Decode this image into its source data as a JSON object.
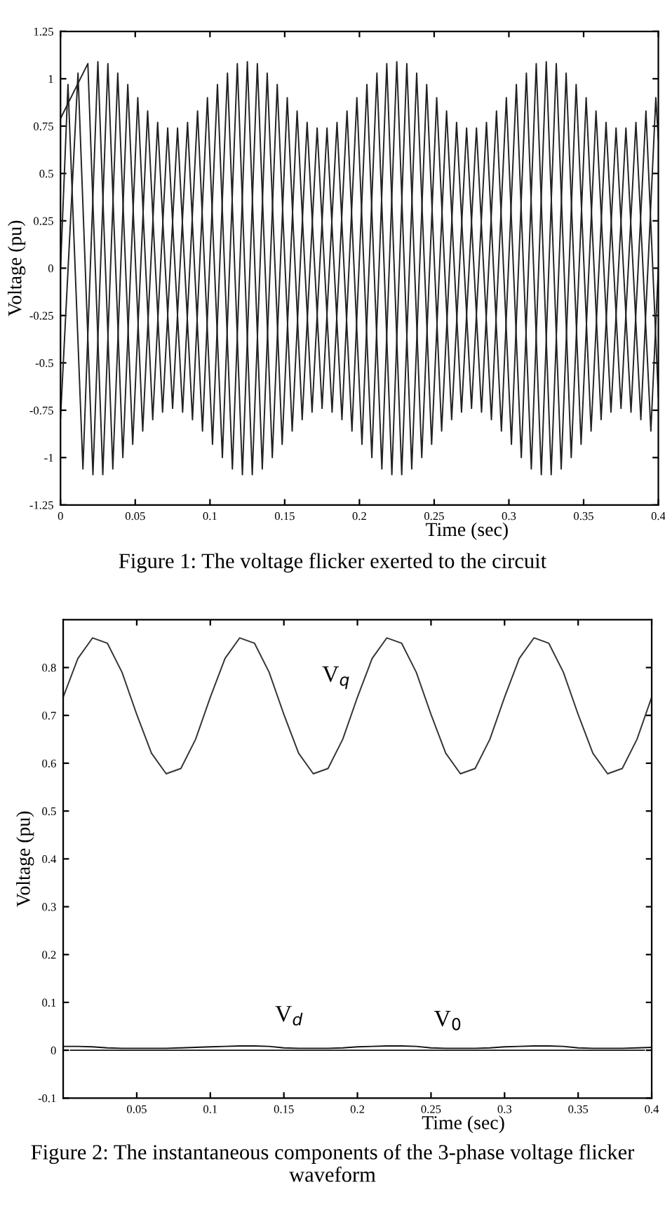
{
  "chart_data": [
    {
      "type": "line",
      "xlabel": "Time (sec)",
      "ylabel": "Voltage (pu)",
      "xlim": [
        0,
        0.4
      ],
      "ylim": [
        -1.25,
        1.25
      ],
      "xticks": [
        0,
        0.05,
        0.1,
        0.15,
        0.2,
        0.25,
        0.3,
        0.35,
        0.4
      ],
      "yticks": [
        -1.25,
        -1,
        -0.75,
        -0.5,
        -0.25,
        0,
        0.25,
        0.5,
        0.75,
        1,
        1.25
      ],
      "grid": false,
      "legend": false,
      "line_style": "solid",
      "marker": "none",
      "annotations": [
        "Figure 1: The voltage flicker exerted to the circuit"
      ],
      "series": [
        {
          "color": "#222222",
          "x": [
            0,
            0.005,
            0.015,
            0.025,
            0.035,
            0.045,
            0.055,
            0.065,
            0.075,
            0.085,
            0.095,
            0.105,
            0.115,
            0.125,
            0.135,
            0.145,
            0.155,
            0.165,
            0.175,
            0.185,
            0.195,
            0.205,
            0.215,
            0.225,
            0.235,
            0.245,
            0.255,
            0.265,
            0.275,
            0.285,
            0.295,
            0.305,
            0.315,
            0.325,
            0.335,
            0.345,
            0.355,
            0.365,
            0.375,
            0.385,
            0.395,
            0.4
          ],
          "values": [
            0,
            0.97,
            -1.06,
            1.09,
            -1.06,
            0.97,
            -0.86,
            0.77,
            -0.74,
            0.77,
            -0.86,
            0.97,
            -1.06,
            1.09,
            -1.06,
            0.97,
            -0.86,
            0.77,
            -0.74,
            0.77,
            -0.86,
            0.97,
            -1.06,
            1.09,
            -1.06,
            0.97,
            -0.86,
            0.77,
            -0.74,
            0.77,
            -0.86,
            0.97,
            -1.06,
            1.09,
            -1.06,
            0.97,
            -0.86,
            0.77,
            -0.74,
            0.77,
            -0.86,
            0
          ]
        },
        {
          "color": "#222222",
          "x": [
            0,
            0.0117,
            0.0217,
            0.0317,
            0.0417,
            0.0517,
            0.0617,
            0.0717,
            0.0817,
            0.0917,
            0.1017,
            0.1117,
            0.1217,
            0.1317,
            0.1417,
            0.1517,
            0.1617,
            0.1717,
            0.1817,
            0.1917,
            0.2017,
            0.2117,
            0.2217,
            0.2317,
            0.2417,
            0.2517,
            0.2617,
            0.2717,
            0.2817,
            0.2917,
            0.3017,
            0.3117,
            0.3217,
            0.3317,
            0.3417,
            0.3517,
            0.3617,
            0.3717,
            0.3817,
            0.3917,
            0.4
          ],
          "values": [
            -0.79,
            1.03,
            -1.09,
            1.08,
            -1.0,
            0.9,
            -0.8,
            0.74,
            -0.76,
            0.83,
            -0.93,
            1.03,
            -1.09,
            1.08,
            -1.0,
            0.9,
            -0.8,
            0.74,
            -0.76,
            0.83,
            -0.93,
            1.03,
            -1.09,
            1.08,
            -1.0,
            0.9,
            -0.8,
            0.74,
            -0.76,
            0.83,
            -0.93,
            1.03,
            -1.09,
            1.08,
            -1.0,
            0.9,
            -0.8,
            0.74,
            -0.76,
            0.83,
            -0.68
          ]
        },
        {
          "color": "#222222",
          "x": [
            0,
            0.0183,
            0.0283,
            0.0383,
            0.0483,
            0.0583,
            0.0683,
            0.0783,
            0.0883,
            0.0983,
            0.1083,
            0.1183,
            0.1283,
            0.1383,
            0.1483,
            0.1583,
            0.1683,
            0.1783,
            0.1883,
            0.1983,
            0.2083,
            0.2183,
            0.2283,
            0.2383,
            0.2483,
            0.2583,
            0.2683,
            0.2783,
            0.2883,
            0.2983,
            0.3083,
            0.3183,
            0.3283,
            0.3383,
            0.3483,
            0.3583,
            0.3683,
            0.3783,
            0.3883,
            0.3983,
            0.4
          ],
          "values": [
            0.79,
            1.08,
            -1.09,
            1.03,
            -0.93,
            0.83,
            -0.76,
            0.74,
            -0.8,
            0.9,
            -1.0,
            1.08,
            -1.09,
            1.03,
            -0.93,
            0.83,
            -0.76,
            0.74,
            -0.8,
            0.9,
            -1.0,
            1.08,
            -1.09,
            1.03,
            -0.93,
            0.83,
            -0.76,
            0.74,
            -0.8,
            0.9,
            -1.0,
            1.08,
            -1.09,
            1.03,
            -0.93,
            0.83,
            -0.76,
            0.74,
            -0.8,
            0.9,
            0.68
          ]
        }
      ]
    },
    {
      "type": "line",
      "xlabel": "Time (sec)",
      "ylabel": "Voltage (pu)",
      "xlim": [
        0,
        0.4
      ],
      "ylim": [
        -0.1,
        0.9
      ],
      "xticks": [
        0.05,
        0.1,
        0.15,
        0.2,
        0.25,
        0.3,
        0.35,
        0.4
      ],
      "yticks": [
        -0.1,
        0,
        0.1,
        0.2,
        0.3,
        0.4,
        0.5,
        0.6,
        0.7,
        0.8
      ],
      "grid": false,
      "legend": false,
      "line_style": "solid",
      "marker": "none",
      "annotations": [
        "Figure 2: The instantaneous components of the 3-phase voltage flicker waveform"
      ],
      "x": [
        0,
        0.01,
        0.02,
        0.03,
        0.04,
        0.05,
        0.06,
        0.07,
        0.08,
        0.09,
        0.1,
        0.11,
        0.12,
        0.13,
        0.14,
        0.15,
        0.16,
        0.17,
        0.18,
        0.19,
        0.2,
        0.21,
        0.22,
        0.23,
        0.24,
        0.25,
        0.26,
        0.27,
        0.28,
        0.29,
        0.3,
        0.31,
        0.32,
        0.33,
        0.34,
        0.35,
        0.36,
        0.37,
        0.38,
        0.39,
        0.4
      ],
      "series": [
        {
          "name": "V$_{q}$",
          "color": "#333333",
          "values": [
            0.738,
            0.819,
            0.862,
            0.851,
            0.79,
            0.702,
            0.621,
            0.578,
            0.589,
            0.65,
            0.738,
            0.819,
            0.862,
            0.851,
            0.79,
            0.702,
            0.621,
            0.578,
            0.589,
            0.65,
            0.738,
            0.819,
            0.862,
            0.851,
            0.79,
            0.702,
            0.621,
            0.578,
            0.589,
            0.65,
            0.738,
            0.819,
            0.862,
            0.851,
            0.79,
            0.702,
            0.621,
            0.578,
            0.589,
            0.65,
            0.738
          ]
        },
        {
          "name": "V$_{d}$",
          "color": "#111111",
          "values": [
            0.008,
            0.008,
            0.007,
            0.005,
            0.004,
            0.004,
            0.004,
            0.004,
            0.005,
            0.006,
            0.007,
            0.008,
            0.009,
            0.009,
            0.008,
            0.005,
            0.004,
            0.004,
            0.004,
            0.005,
            0.007,
            0.008,
            0.009,
            0.009,
            0.008,
            0.005,
            0.004,
            0.004,
            0.004,
            0.005,
            0.007,
            0.008,
            0.009,
            0.009,
            0.008,
            0.005,
            0.004,
            0.004,
            0.004,
            0.005,
            0.006
          ]
        },
        {
          "name": "V$_{0}$",
          "color": "#111111",
          "x": [
            0.005,
            0.395
          ],
          "values": [
            0,
            0
          ]
        }
      ]
    }
  ]
}
